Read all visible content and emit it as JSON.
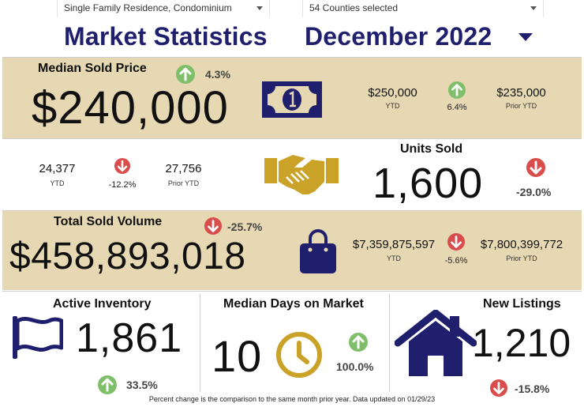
{
  "filters": {
    "property_type": "Single Family Residence, Condominium",
    "counties": "54 Counties selected"
  },
  "header": {
    "title": "Market Statistics",
    "period": "December 2022"
  },
  "median_sold_price": {
    "label": "Median Sold Price",
    "value": "$240,000",
    "change": "4.3%",
    "ytd_value": "$250,000",
    "ytd_label": "YTD",
    "ytd_change": "6.4%",
    "prior_ytd_value": "$235,000",
    "prior_ytd_label": "Prior YTD"
  },
  "units_sold": {
    "label": "Units Sold",
    "value": "1,600",
    "change": "-29.0%",
    "ytd_value": "24,377",
    "ytd_label": "YTD",
    "ytd_change": "-12.2%",
    "prior_ytd_value": "27,756",
    "prior_ytd_label": "Prior YTD"
  },
  "total_sold_volume": {
    "label": "Total Sold Volume",
    "value": "$458,893,018",
    "change": "-25.7%",
    "ytd_value": "$7,359,875,597",
    "ytd_label": "YTD",
    "ytd_change": "-5.6%",
    "prior_ytd_value": "$7,800,399,772",
    "prior_ytd_label": "Prior YTD"
  },
  "active_inventory": {
    "label": "Active Inventory",
    "value": "1,861",
    "change": "33.5%"
  },
  "median_days_on_market": {
    "label": "Median Days on Market",
    "value": "10",
    "change": "100.0%"
  },
  "new_listings": {
    "label": "New Listings",
    "value": "1,210",
    "change": "-15.8%"
  },
  "footnote": "Percent change is the comparison to the same month prior year. Data updated on 01/29/23",
  "colors": {
    "navy": "#1f1f6e",
    "tan": "#e6d8b2",
    "gold": "#c9a227",
    "up": "#7fbf6a",
    "down": "#d94d4d"
  },
  "icons": {
    "median_sold_price": "money-bill-icon",
    "units_sold": "handshake-icon",
    "total_sold_volume": "shopping-bag-icon",
    "active_inventory": "flag-icon",
    "median_days_on_market": "clock-icon",
    "new_listings": "house-icon"
  }
}
